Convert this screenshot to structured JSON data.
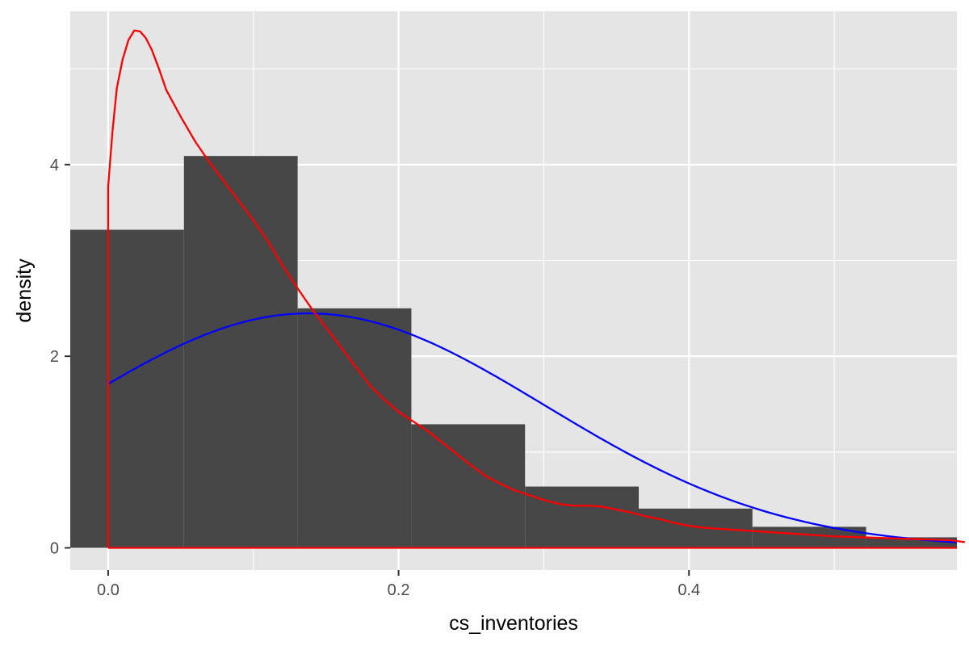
{
  "chart_data": {
    "type": "bar",
    "xlabel": "cs_inventories",
    "ylabel": "density",
    "xlim": [
      -0.0261,
      0.5845
    ],
    "ylim": [
      -0.232,
      5.6
    ],
    "x_ticks": [
      0.0,
      0.2,
      0.4
    ],
    "x_tick_labels": [
      "0.0",
      "0.2",
      "0.4"
    ],
    "x_minor_ticks": [
      0.1,
      0.3,
      0.5
    ],
    "y_ticks": [
      0,
      2,
      4
    ],
    "y_tick_labels": [
      "0",
      "2",
      "4"
    ],
    "y_minor_ticks": [
      1,
      3,
      5
    ],
    "grid": true,
    "legend": "none",
    "colors": {
      "panel": "#e5e5e5",
      "grid": "#ffffff",
      "bars": "#474747",
      "empirical_density": "#ff0000",
      "normal_density": "#0000ff"
    },
    "histogram": {
      "bin_edges": [
        -0.0261,
        0.0522,
        0.1305,
        0.2088,
        0.2871,
        0.3654,
        0.4437,
        0.522,
        0.6003
      ],
      "values": [
        3.32,
        4.09,
        2.5,
        1.29,
        0.64,
        0.41,
        0.22,
        0.11
      ]
    },
    "series": [
      {
        "kind": "kde",
        "color": "#ff0000",
        "x": [
          0.0,
          0.003,
          0.006,
          0.01,
          0.014,
          0.018,
          0.022,
          0.026,
          0.03,
          0.035,
          0.04,
          0.05,
          0.06,
          0.07,
          0.08,
          0.09,
          0.1,
          0.11,
          0.12,
          0.13,
          0.14,
          0.15,
          0.16,
          0.17,
          0.18,
          0.19,
          0.2,
          0.21,
          0.22,
          0.23,
          0.24,
          0.25,
          0.26,
          0.27,
          0.28,
          0.29,
          0.3,
          0.31,
          0.32,
          0.33,
          0.34,
          0.35,
          0.36,
          0.37,
          0.38,
          0.39,
          0.4,
          0.41,
          0.42,
          0.43,
          0.44,
          0.45,
          0.46,
          0.47,
          0.48,
          0.49,
          0.5,
          0.52,
          0.54,
          0.56,
          0.58,
          0.59
        ],
        "y": [
          3.77,
          4.35,
          4.8,
          5.1,
          5.3,
          5.4,
          5.39,
          5.32,
          5.2,
          5.0,
          4.78,
          4.5,
          4.24,
          4.02,
          3.82,
          3.62,
          3.42,
          3.2,
          2.95,
          2.72,
          2.5,
          2.3,
          2.1,
          1.9,
          1.7,
          1.55,
          1.42,
          1.32,
          1.22,
          1.1,
          0.98,
          0.86,
          0.75,
          0.67,
          0.6,
          0.55,
          0.5,
          0.46,
          0.44,
          0.44,
          0.43,
          0.4,
          0.37,
          0.33,
          0.3,
          0.26,
          0.23,
          0.21,
          0.2,
          0.19,
          0.18,
          0.17,
          0.16,
          0.15,
          0.14,
          0.13,
          0.12,
          0.11,
          0.1,
          0.09,
          0.08,
          0.06
        ],
        "baseline_from": 0.0,
        "baseline_to": 0.5845
      },
      {
        "kind": "normal",
        "color": "#0000ff",
        "mean": 0.138,
        "sd": 0.163,
        "x_from": 0.0,
        "x_to": 0.5845
      }
    ]
  }
}
